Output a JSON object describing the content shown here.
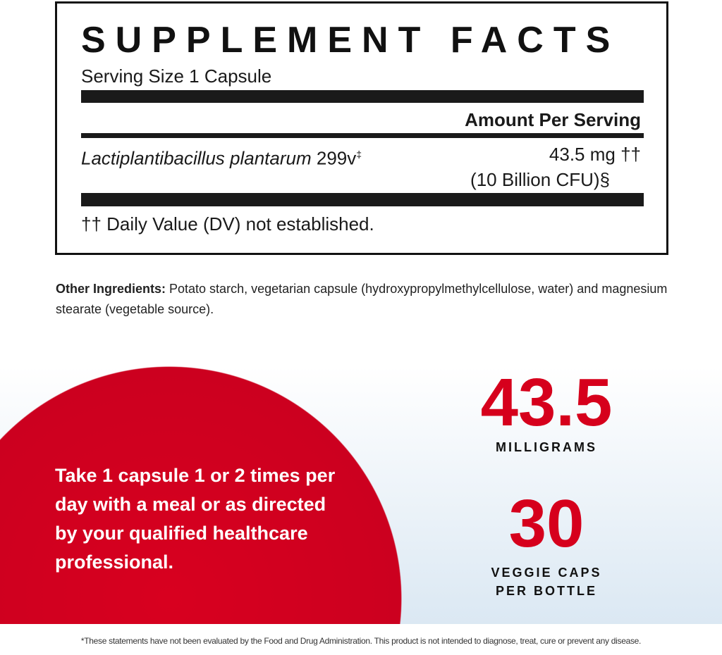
{
  "facts": {
    "title": "SUPPLEMENT FACTS",
    "serving_size": "Serving Size 1 Capsule",
    "amount_header": "Amount Per Serving",
    "ingredient_name": "Lactiplantibacillus plantarum",
    "ingredient_strain": "299v",
    "ingredient_mark": "‡",
    "amount": "43.5 mg ††",
    "cfu": "(10 Billion CFU)§",
    "dv_note": "†† Daily Value (DV) not established."
  },
  "other": {
    "label": "Other Ingredients:",
    "text": " Potato starch, vegetarian capsule (hydroxypropylmethylcellulose, water) and magnesium stearate (vegetable source)."
  },
  "promo": {
    "directions": "Take 1 capsule 1 or 2 times per day with a meal or as directed by your qualified healthcare professional.",
    "stat1_value": "43.5",
    "stat1_label": "MILLIGRAMS",
    "stat2_value": "30",
    "stat2_label_1": "VEGGIE CAPS",
    "stat2_label_2": "PER BOTTLE",
    "accent": "#d6001c"
  },
  "disclaimer": "*These statements have not been evaluated by the Food and Drug Administration. This product is not intended to diagnose, treat, cure or prevent any disease."
}
